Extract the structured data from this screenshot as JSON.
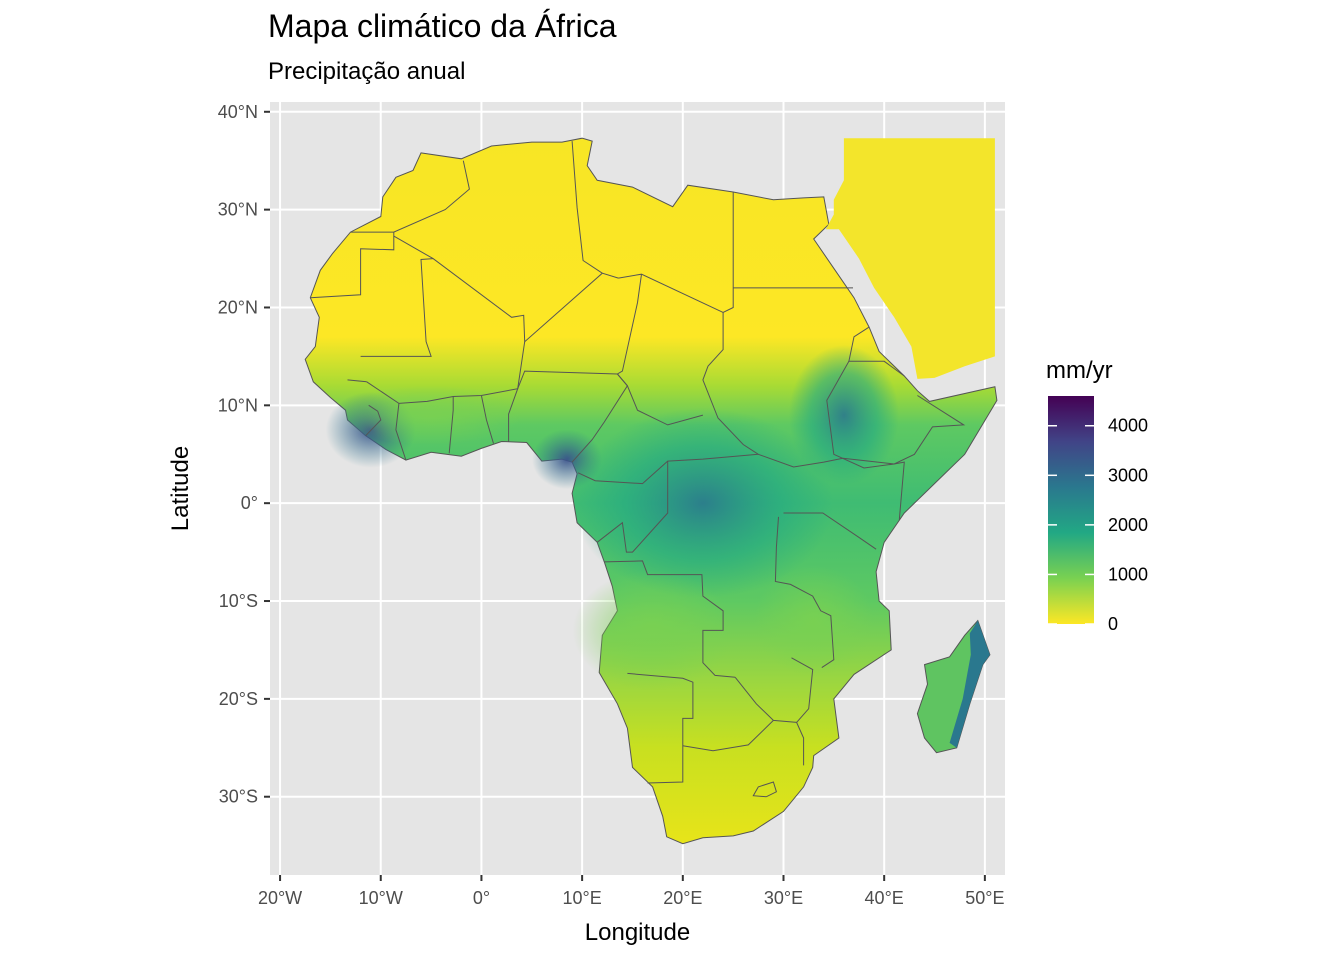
{
  "title": "Mapa climático da África",
  "subtitle": "Precipitação anual",
  "chart_data": {
    "type": "heatmap",
    "subject": "Africa annual precipitation map",
    "xlabel": "Longitude",
    "ylabel": "Latitude",
    "x_ticks": [
      {
        "value": -20,
        "label": "20°W"
      },
      {
        "value": -10,
        "label": "10°W"
      },
      {
        "value": 0,
        "label": "0°"
      },
      {
        "value": 10,
        "label": "10°E"
      },
      {
        "value": 20,
        "label": "20°E"
      },
      {
        "value": 30,
        "label": "30°E"
      },
      {
        "value": 40,
        "label": "40°E"
      },
      {
        "value": 50,
        "label": "50°E"
      }
    ],
    "y_ticks": [
      {
        "value": 40,
        "label": "40°N"
      },
      {
        "value": 30,
        "label": "30°N"
      },
      {
        "value": 20,
        "label": "20°N"
      },
      {
        "value": 10,
        "label": "10°N"
      },
      {
        "value": 0,
        "label": "0°"
      },
      {
        "value": -10,
        "label": "10°S"
      },
      {
        "value": -20,
        "label": "20°S"
      },
      {
        "value": -30,
        "label": "30°S"
      }
    ],
    "xlim": [
      -21,
      52
    ],
    "ylim": [
      -38,
      41
    ],
    "legend": {
      "title": "mm/yr",
      "placement": "right",
      "min": 0,
      "max": 4600,
      "breaks": [
        {
          "value": 0,
          "label": "0"
        },
        {
          "value": 1000,
          "label": "1000"
        },
        {
          "value": 2000,
          "label": "2000"
        },
        {
          "value": 3000,
          "label": "3000"
        },
        {
          "value": 4000,
          "label": "4000"
        }
      ],
      "colors": [
        "#fde725",
        "#7ad151",
        "#22a884",
        "#2a788e",
        "#414487",
        "#440154"
      ]
    },
    "panel_background": "#e5e5e5",
    "grid": true,
    "grid_color": "#ffffff"
  }
}
